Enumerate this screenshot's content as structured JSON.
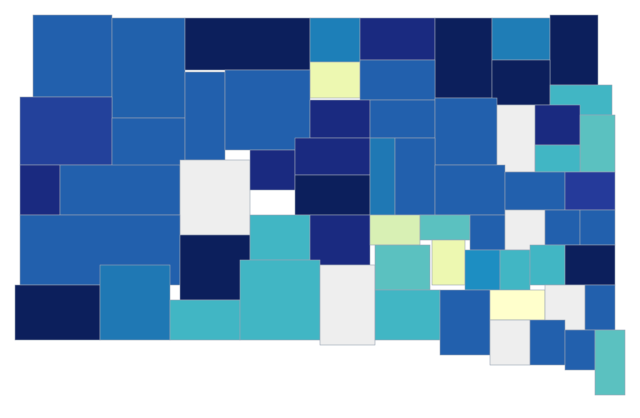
{
  "map": {
    "region_colors": [
      "#2260ad",
      "#2161ac",
      "#0c1f5c",
      "#1d7fb8",
      "#1a2a80",
      "#0c1f5c",
      "#1f7db6",
      "#0c1f5c",
      "#edf8b1",
      "#2260ad",
      "#0c1f5c",
      "#41b6c4",
      "#23419b",
      "#2260ad",
      "#2260ad",
      "#2260ad",
      "#1a2a80",
      "#2260ad",
      "#2260ad",
      "#eeeeee",
      "#1a2a80",
      "#5bc1c0",
      "#41b6c4",
      "#1a2a80",
      "#2260ad",
      "#eeeeee",
      "#1a2a80",
      "#1a2a80",
      "#0c1f5c",
      "#1f78b4",
      "#2260ad",
      "#2260ad",
      "#2260ad",
      "#253a9a",
      "#2260ad",
      "#0c1f5c",
      "#41b6c4",
      "#1a2a80",
      "#d8f0b4",
      "#5bc1c0",
      "#2260ad",
      "#eeeeee",
      "#2260ad",
      "#2260ad",
      "#0c1f5c",
      "#1f78b4",
      "#41b6c4",
      "#41b6c4",
      "#eeeeee",
      "#5bc1c0",
      "#edf8b1",
      "#1d8ec2",
      "#41b6c4",
      "#41b6c4",
      "#0c1f5c",
      "#41b6c4",
      "#2260ad",
      "#ffffcc",
      "#eeeeee",
      "#2260ad",
      "#eeeeee",
      "#2260ad",
      "#2260ad",
      "#5bc1c0"
    ]
  }
}
